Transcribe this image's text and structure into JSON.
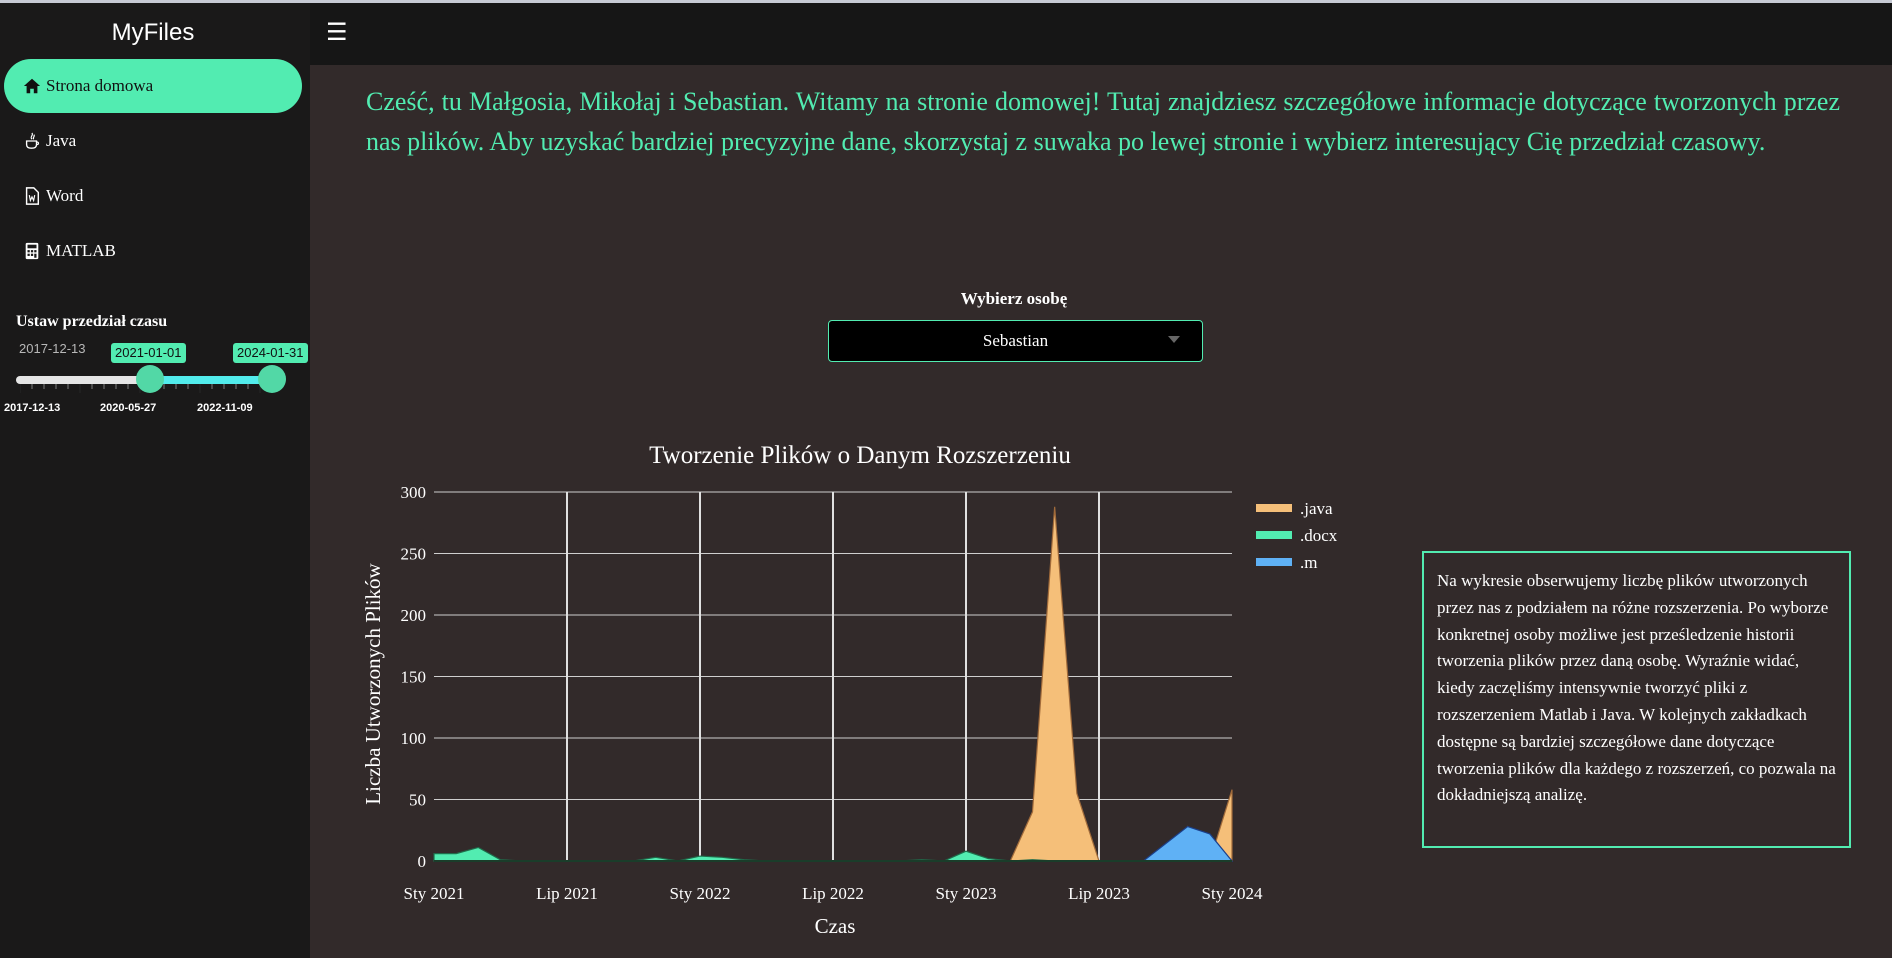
{
  "app": {
    "title": "MyFiles"
  },
  "sidebar": {
    "items": [
      {
        "label": "Strona domowa",
        "icon": "home-icon",
        "active": true
      },
      {
        "label": "Java",
        "icon": "java-icon",
        "active": false
      },
      {
        "label": "Word",
        "icon": "word-file-icon",
        "active": false
      },
      {
        "label": "MATLAB",
        "icon": "calculator-icon",
        "active": false
      }
    ],
    "range": {
      "title": "Ustaw przedział czasu",
      "min_label": "2017-12-13",
      "start_value": "2021-01-01",
      "end_value": "2024-01-31",
      "marks": [
        "2017-12-13",
        "2020-05-27",
        "2022-11-09"
      ]
    }
  },
  "header": {
    "menu_icon": "hamburger-menu-icon"
  },
  "main": {
    "intro": "Cześć, tu Małgosia, Mikołaj i Sebastian. Witamy na stronie domowej! Tutaj znajdziesz szczegółowe informacje dotyczące tworzonych przez nas plików. Aby uzyskać bardziej precyzyjne dane, skorzystaj z suwaka po lewej stronie i wybierz interesujący Cię przedział czasowy.",
    "select": {
      "label": "Wybierz osobę",
      "value": "Sebastian"
    },
    "info": "Na wykresie obserwujemy liczbę plików utworzonych przez nas z podziałem na różne rozszerzenia. Po wyborze konkretnej osoby możliwe jest prześledzenie historii tworzenia plików przez daną osobę. Wyraźnie widać, kiedy zaczęliśmy intensywnie tworzyć pliki z rozszerzeniem Matlab i Java. W kolejnych zakładkach dostępne są bardziej szczegółowe dane dotyczące tworzenia plików dla każdego z rozszerzeń, co pozwala na dokładniejszą analizę."
  },
  "colors": {
    "accent": "#52ecb1",
    "java": "#f5bf79",
    "docx": "#52ecb1",
    "m": "#5fb1f5"
  },
  "chart_data": {
    "type": "area",
    "title": "Tworzenie Plików o Danym Rozszerzeniu",
    "xlabel": "Czas",
    "ylabel": "Liczba Utworzonych Plików",
    "ylim": [
      0,
      300
    ],
    "yticks": [
      0,
      50,
      100,
      150,
      200,
      250,
      300
    ],
    "xticks": [
      "Sty 2021",
      "Lip 2021",
      "Sty 2022",
      "Lip 2022",
      "Sty 2023",
      "Lip 2023",
      "Sty 2024"
    ],
    "x": [
      "2021-01",
      "2021-02",
      "2021-03",
      "2021-04",
      "2021-05",
      "2021-06",
      "2021-07",
      "2021-08",
      "2021-09",
      "2021-10",
      "2021-11",
      "2021-12",
      "2022-01",
      "2022-02",
      "2022-03",
      "2022-04",
      "2022-05",
      "2022-06",
      "2022-07",
      "2022-08",
      "2022-09",
      "2022-10",
      "2022-11",
      "2022-12",
      "2023-01",
      "2023-02",
      "2023-03",
      "2023-04",
      "2023-05",
      "2023-06",
      "2023-07",
      "2023-08",
      "2023-09",
      "2023-10",
      "2023-11",
      "2023-12",
      "2024-01"
    ],
    "grid": true,
    "legend": "top-right",
    "series": [
      {
        "name": ".java",
        "values": [
          0,
          0,
          0,
          0,
          0,
          0,
          0,
          0,
          0,
          0,
          0,
          0,
          0,
          0,
          0,
          0,
          0,
          0,
          0,
          0,
          0,
          0,
          0,
          0,
          0,
          0,
          0,
          40,
          288,
          55,
          0,
          0,
          0,
          10,
          28,
          0,
          58
        ]
      },
      {
        "name": ".docx",
        "values": [
          6,
          6,
          11,
          1,
          0,
          0,
          0,
          0,
          0,
          0,
          3,
          0,
          4,
          3,
          1,
          0,
          0,
          0,
          0,
          0,
          0,
          0,
          1,
          0,
          8,
          2,
          0,
          1,
          0,
          0,
          0,
          0,
          0,
          0,
          0,
          0,
          0
        ]
      },
      {
        "name": ".m",
        "values": [
          0,
          0,
          0,
          0,
          0,
          0,
          0,
          0,
          0,
          0,
          0,
          0,
          0,
          0,
          0,
          0,
          0,
          0,
          0,
          0,
          0,
          0,
          0,
          0,
          0,
          0,
          0,
          0,
          0,
          0,
          0,
          0,
          0,
          14,
          28,
          22,
          0
        ]
      }
    ]
  }
}
